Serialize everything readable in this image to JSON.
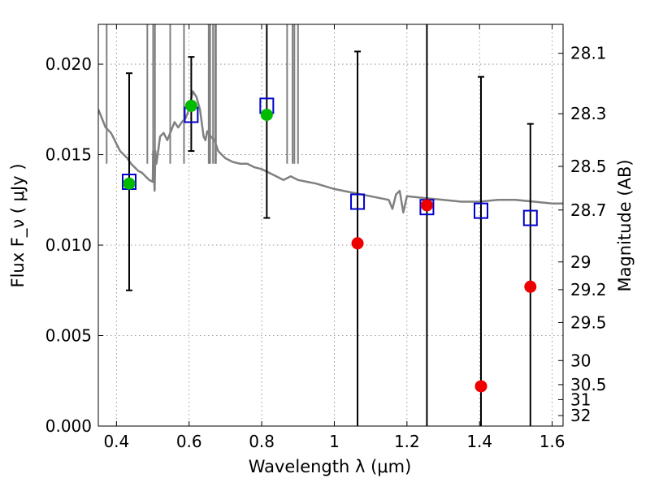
{
  "chart_data": {
    "type": "scatter",
    "xlabel": "Wavelength  λ (μm)",
    "ylabel": "Flux  F_ν  ( μJy )",
    "ylabel_right": "Magnitude (AB)",
    "xlim": [
      0.35,
      1.63
    ],
    "ylim": [
      0.0,
      0.0222
    ],
    "grid": true,
    "x_ticks": [
      0.4,
      0.6,
      0.8,
      1.0,
      1.2,
      1.4,
      1.6
    ],
    "x_tick_labels": [
      "0.4",
      "0.6",
      "0.8",
      "1",
      "1.2",
      "1.4",
      "1.6"
    ],
    "y_ticks": [
      0.0,
      0.005,
      0.01,
      0.015,
      0.02
    ],
    "y_tick_labels": [
      "0.000",
      "0.005",
      "0.010",
      "0.015",
      "0.020"
    ],
    "right_axis_ticks": [
      {
        "label": "28.1",
        "flux": 0.0206
      },
      {
        "label": "28.3",
        "flux": 0.01726
      },
      {
        "label": "28.5",
        "flux": 0.01435
      },
      {
        "label": "28.7",
        "flux": 0.01194
      },
      {
        "label": "29",
        "flux": 0.00907
      },
      {
        "label": "29.2",
        "flux": 0.00754
      },
      {
        "label": "29.5",
        "flux": 0.00572
      },
      {
        "label": "30",
        "flux": 0.00362
      },
      {
        "label": "30.5",
        "flux": 0.00229
      },
      {
        "label": "31",
        "flux": 0.00146
      },
      {
        "label": "32",
        "flux": 0.00058
      }
    ],
    "series": [
      {
        "kind": "line",
        "color": "#808080",
        "x": [
          0.35,
          0.36,
          0.37,
          0.375,
          0.38,
          0.385,
          0.39,
          0.4,
          0.41,
          0.42,
          0.43,
          0.44,
          0.45,
          0.46,
          0.47,
          0.48,
          0.49,
          0.5,
          0.501,
          0.505,
          0.507,
          0.51,
          0.515,
          0.52,
          0.53,
          0.54,
          0.55,
          0.56,
          0.57,
          0.58,
          0.59,
          0.6,
          0.61,
          0.62,
          0.63,
          0.64,
          0.645,
          0.65,
          0.66,
          0.67,
          0.68,
          0.7,
          0.72,
          0.74,
          0.76,
          0.78,
          0.8,
          0.82,
          0.84,
          0.86,
          0.87,
          0.88,
          0.9,
          0.95,
          1.0,
          1.05,
          1.1,
          1.15,
          1.16,
          1.17,
          1.18,
          1.19,
          1.2,
          1.25,
          1.3,
          1.35,
          1.4,
          1.45,
          1.5,
          1.55,
          1.6,
          1.63
        ],
        "y": [
          0.0175,
          0.017,
          0.0165,
          0.0164,
          0.0163,
          0.0162,
          0.016,
          0.0156,
          0.0152,
          0.015,
          0.0148,
          0.0145,
          0.0143,
          0.0141,
          0.014,
          0.0138,
          0.0136,
          0.0135,
          0.0152,
          0.013,
          0.0152,
          0.0145,
          0.0152,
          0.016,
          0.0162,
          0.0158,
          0.0163,
          0.0168,
          0.0165,
          0.0168,
          0.017,
          0.0175,
          0.0185,
          0.0182,
          0.0175,
          0.016,
          0.0158,
          0.0163,
          0.016,
          0.0158,
          0.0152,
          0.0148,
          0.0146,
          0.0145,
          0.0145,
          0.0143,
          0.0142,
          0.014,
          0.0138,
          0.0136,
          0.0137,
          0.0138,
          0.0136,
          0.0134,
          0.0131,
          0.0129,
          0.0127,
          0.0125,
          0.012,
          0.0128,
          0.013,
          0.0118,
          0.0127,
          0.0126,
          0.0125,
          0.0124,
          0.0124,
          0.0125,
          0.0125,
          0.0124,
          0.0123,
          0.0123
        ]
      },
      {
        "kind": "squares",
        "color": "#0000cc",
        "x": [
          0.435,
          0.606,
          0.814,
          1.064,
          1.255,
          1.404,
          1.54
        ],
        "y": [
          0.0135,
          0.0172,
          0.0177,
          0.0124,
          0.0121,
          0.0119,
          0.0115
        ]
      },
      {
        "kind": "points",
        "color": "#00bb00",
        "x": [
          0.435,
          0.606,
          0.814
        ],
        "y": [
          0.0134,
          0.0177,
          0.0172
        ]
      },
      {
        "kind": "points",
        "color": "#ee0000",
        "x": [
          1.064,
          1.255,
          1.404,
          1.54
        ],
        "y": [
          0.0101,
          0.0122,
          0.0022,
          0.0077
        ]
      },
      {
        "kind": "errorbars",
        "color": "#000000",
        "bars": [
          {
            "x": 0.435,
            "low": 0.0075,
            "high": 0.0195
          },
          {
            "x": 0.606,
            "low": 0.0152,
            "high": 0.0204
          },
          {
            "x": 0.814,
            "low": 0.0115,
            "high": 0.023
          },
          {
            "x": 1.064,
            "low": 0.0,
            "high": 0.0207
          },
          {
            "x": 1.255,
            "low": 0.0,
            "high": 0.023
          },
          {
            "x": 1.404,
            "low": 0.0,
            "high": 0.0193
          },
          {
            "x": 1.54,
            "low": 0.0,
            "high": 0.0167
          }
        ]
      }
    ],
    "spikes": [
      {
        "x": 0.373,
        "top": 0.023
      },
      {
        "x": 0.501,
        "top": 0.023
      },
      {
        "x": 0.506,
        "top": 0.023
      },
      {
        "x": 0.485,
        "top": 0.023
      },
      {
        "x": 0.548,
        "top": 0.023
      },
      {
        "x": 0.586,
        "top": 0.023
      },
      {
        "x": 0.654,
        "top": 0.023
      },
      {
        "x": 0.656,
        "top": 0.023
      },
      {
        "x": 0.658,
        "top": 0.023
      },
      {
        "x": 0.666,
        "top": 0.023
      },
      {
        "x": 0.672,
        "top": 0.023
      },
      {
        "x": 0.674,
        "top": 0.023
      },
      {
        "x": 0.87,
        "top": 0.023
      },
      {
        "x": 0.885,
        "top": 0.023
      },
      {
        "x": 0.89,
        "top": 0.023
      },
      {
        "x": 0.9,
        "top": 0.023
      }
    ]
  }
}
